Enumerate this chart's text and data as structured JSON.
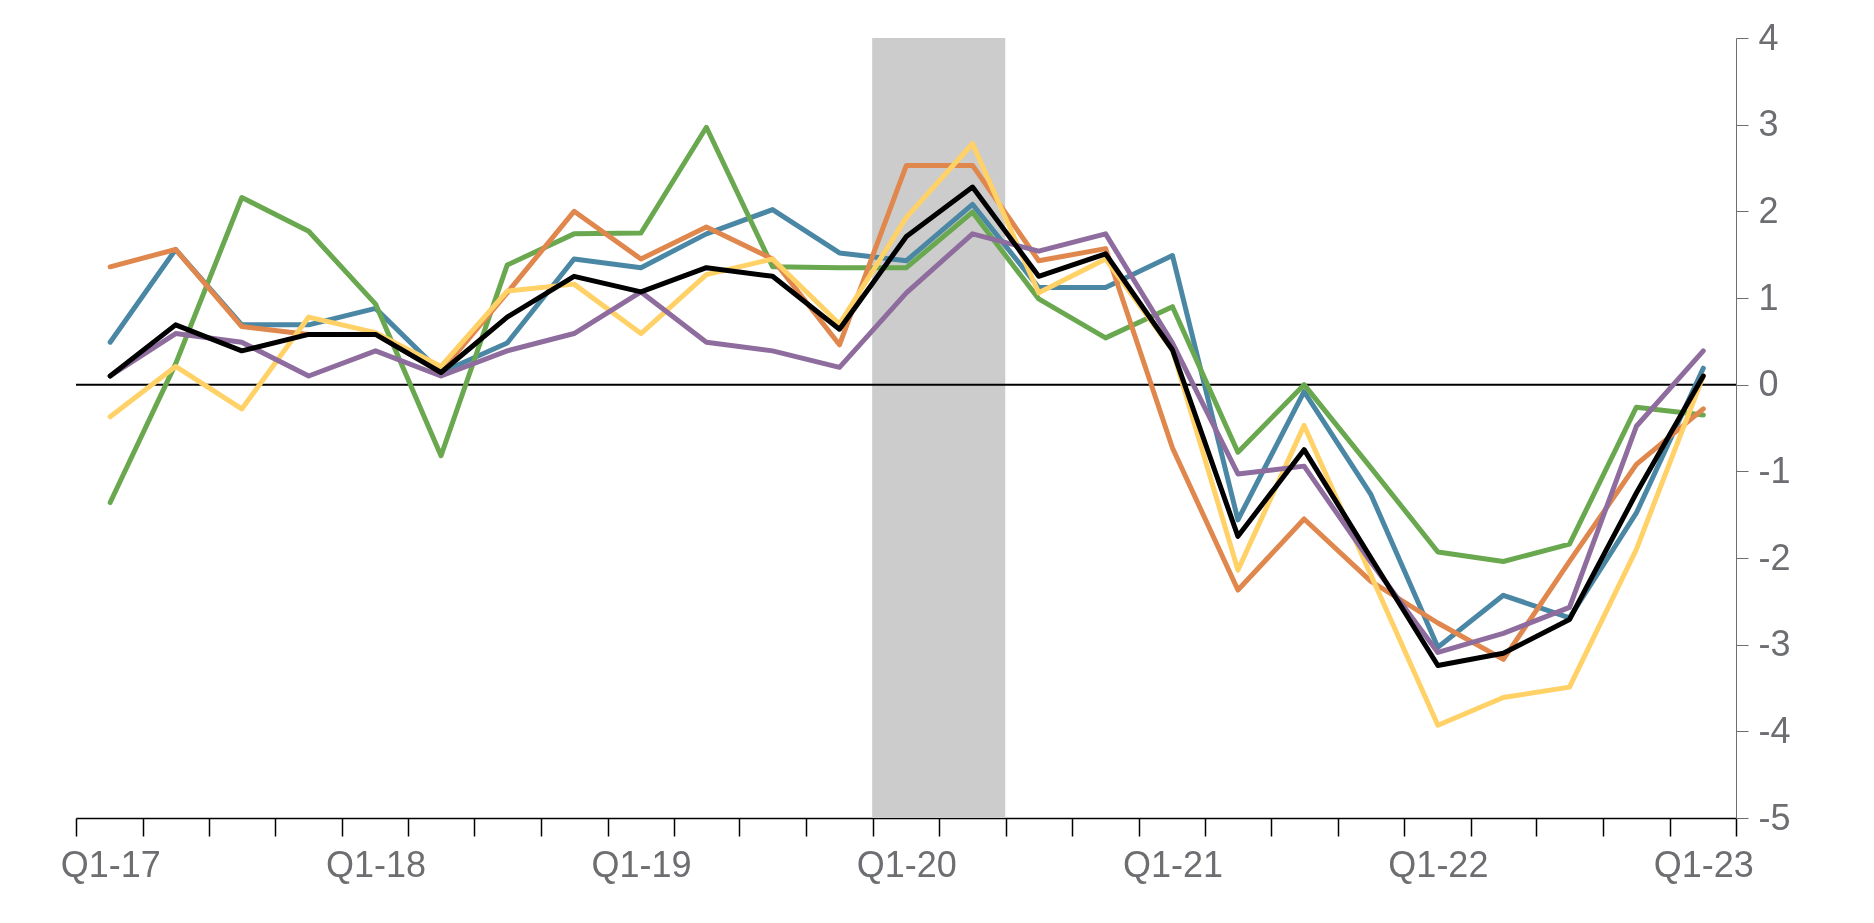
{
  "chart_data": {
    "type": "line",
    "x": [
      "2017-01",
      "2017-04",
      "2017-07",
      "2017-10",
      "2018-01",
      "2018-04",
      "2018-07",
      "2018-10",
      "2019-01",
      "2019-04",
      "2019-07",
      "2019-10",
      "2020-01",
      "2020-04",
      "2020-07",
      "2020-10",
      "2021-01",
      "2021-04",
      "2021-07",
      "2021-10",
      "2022-01",
      "2022-04",
      "2022-07",
      "2022-10",
      "2023-01"
    ],
    "xlim": [
      "2016-11-15",
      "2023-02-15"
    ],
    "xticks": [
      {
        "value": "2017-01",
        "label": "Q1-17"
      },
      {
        "value": "2018-01",
        "label": "Q1-18"
      },
      {
        "value": "2019-01",
        "label": "Q1-19"
      },
      {
        "value": "2020-01",
        "label": "Q1-20"
      },
      {
        "value": "2021-01",
        "label": "Q1-21"
      },
      {
        "value": "2022-01",
        "label": "Q1-22"
      },
      {
        "value": "2023-01",
        "label": "Q1-23"
      }
    ],
    "ylim": [
      -5,
      4
    ],
    "yticks": [
      -5,
      -4,
      -3,
      -2,
      -1,
      0,
      1,
      2,
      3,
      4
    ],
    "grid": false,
    "ref_lines": [
      {
        "axis": "y",
        "value": 0,
        "color": "#000000"
      }
    ],
    "bands": [
      {
        "axis": "x",
        "from": "2019-11-15",
        "to": "2020-05-16",
        "color": "#cccccc"
      }
    ],
    "series": [
      {
        "color": "#4a87a4",
        "values": [
          0.49,
          1.56,
          0.69,
          0.69,
          0.88,
          0.14,
          0.48,
          1.45,
          1.35,
          1.74,
          2.02,
          1.52,
          1.43,
          2.08,
          1.12,
          1.12,
          1.49,
          -1.56,
          -0.08,
          -1.27,
          -3.03,
          -2.43,
          -2.69,
          -1.48,
          0.19
        ]
      },
      {
        "color": "#6aa84f",
        "values": [
          -1.36,
          0.24,
          2.16,
          1.77,
          0.93,
          -0.82,
          1.38,
          1.74,
          1.75,
          2.97,
          1.36,
          1.35,
          1.35,
          1.99,
          0.99,
          0.54,
          0.9,
          -0.78,
          0.0,
          -0.96,
          -1.93,
          -2.04,
          -1.84,
          -0.26,
          -0.35
        ]
      },
      {
        "color": "#e0874d",
        "values": [
          1.36,
          1.56,
          0.67,
          0.58,
          0.58,
          0.15,
          1.06,
          2.0,
          1.45,
          1.82,
          1.45,
          0.46,
          2.53,
          2.53,
          1.43,
          1.57,
          -0.73,
          -2.37,
          -1.55,
          -2.27,
          -2.75,
          -3.17,
          -2.04,
          -0.92,
          -0.28
        ]
      },
      {
        "color": "#ffd166",
        "values": [
          -0.37,
          0.21,
          -0.28,
          0.78,
          0.6,
          0.21,
          1.08,
          1.16,
          0.59,
          1.27,
          1.45,
          0.7,
          1.93,
          2.78,
          1.06,
          1.45,
          0.4,
          -2.14,
          -0.47,
          -2.2,
          -3.93,
          -3.61,
          -3.49,
          -1.9,
          0.1
        ]
      },
      {
        "color": "#8e6c9e",
        "values": [
          0.1,
          0.59,
          0.49,
          0.1,
          0.39,
          0.1,
          0.39,
          0.59,
          1.07,
          0.49,
          0.39,
          0.2,
          1.06,
          1.74,
          1.54,
          1.74,
          0.48,
          -1.03,
          -0.94,
          -2.05,
          -3.09,
          -2.87,
          -2.57,
          -0.48,
          0.39
        ]
      },
      {
        "color": "#000000",
        "values": [
          0.1,
          0.69,
          0.39,
          0.58,
          0.58,
          0.14,
          0.78,
          1.25,
          1.07,
          1.35,
          1.25,
          0.64,
          1.71,
          2.28,
          1.25,
          1.51,
          0.4,
          -1.75,
          -0.75,
          -2.0,
          -3.24,
          -3.1,
          -2.71,
          -1.25,
          0.1
        ]
      }
    ]
  }
}
